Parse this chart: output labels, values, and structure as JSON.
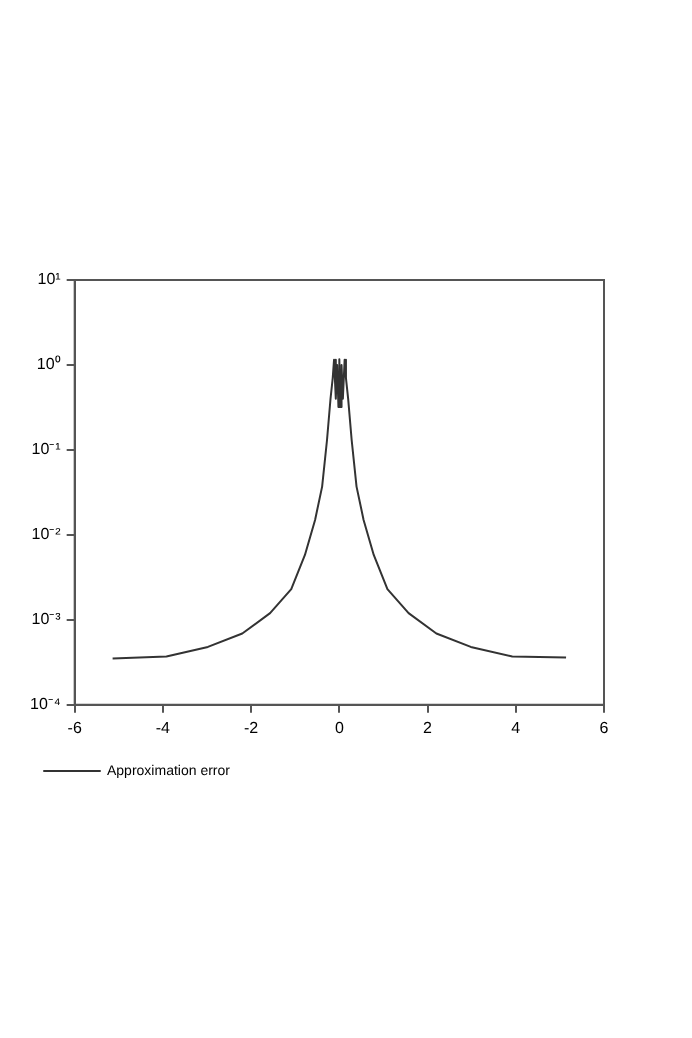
{
  "chart_data": {
    "type": "line",
    "series": [
      {
        "name": "Approximation error",
        "color": "#333333",
        "x": [
          -5.14,
          -3.92,
          -2.98,
          -2.2,
          -1.57,
          -1.09,
          -0.78,
          -0.55,
          -0.39,
          -0.28,
          -0.2,
          -0.15,
          -0.12,
          -0.08,
          -0.05,
          -0.02,
          0,
          0.02,
          0.05,
          0.08,
          0.12,
          0.15,
          0.2,
          0.28,
          0.39,
          0.55,
          0.78,
          1.09,
          1.57,
          2.2,
          2.98,
          3.92,
          5.14
        ],
        "values": [
          0.00035,
          0.00037,
          0.00048,
          0.00069,
          0.0012,
          0.0023,
          0.0058,
          0.015,
          0.037,
          0.13,
          0.4,
          0.7,
          1.15,
          0.4,
          1.0,
          0.32,
          1.17,
          0.32,
          1.0,
          0.4,
          1.15,
          0.7,
          0.4,
          0.13,
          0.037,
          0.015,
          0.0058,
          0.0023,
          0.0012,
          0.00069,
          0.00048,
          0.00037,
          0.00036
        ]
      }
    ],
    "xlim": [
      -6,
      6
    ],
    "xticks": [
      -6,
      -4,
      -2,
      0,
      2,
      4,
      6
    ],
    "ylim": [
      0.0001,
      10
    ],
    "yticks": [
      {
        "value": 10,
        "label": "10¹"
      },
      {
        "value": 1,
        "label": "10⁰"
      },
      {
        "value": 0.1,
        "label": "10⁻¹"
      },
      {
        "value": 0.01,
        "label": "10⁻²"
      },
      {
        "value": 0.001,
        "label": "10⁻³"
      },
      {
        "value": 0.0001,
        "label": "10⁻⁴"
      }
    ],
    "log": "y",
    "grid": false,
    "legend": "bottom left",
    "marker": "none",
    "line_style": "solid"
  }
}
